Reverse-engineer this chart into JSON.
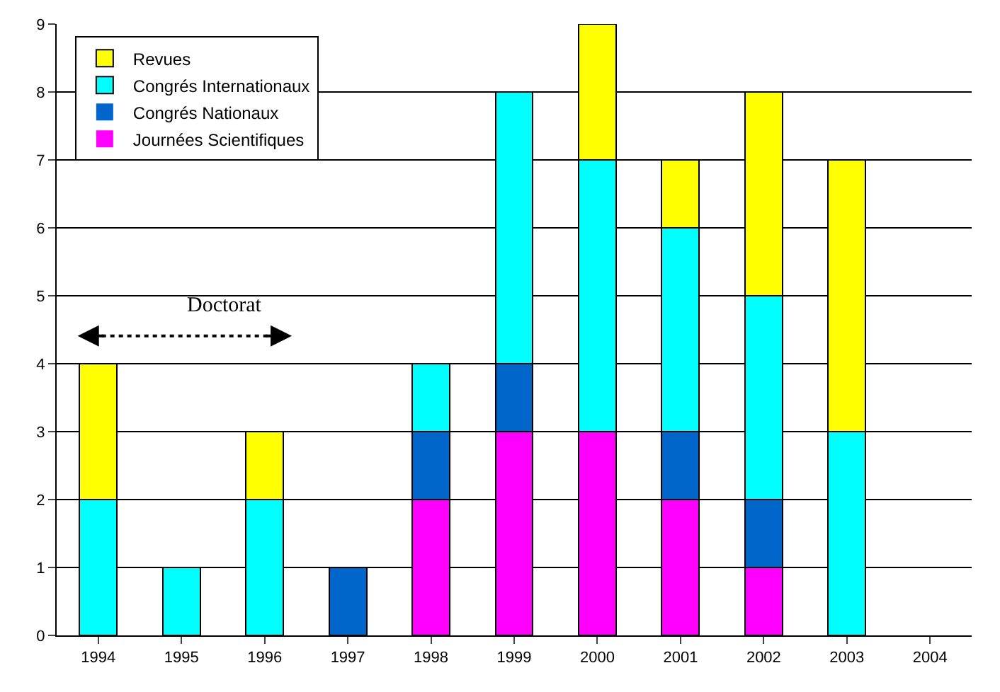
{
  "chart_data": {
    "type": "bar",
    "stacked": true,
    "categories": [
      "1994",
      "1995",
      "1996",
      "1997",
      "1998",
      "1999",
      "2000",
      "2001",
      "2002",
      "2003",
      "2004"
    ],
    "series": [
      {
        "name": "Journées Scientifiques",
        "color": "#ff00ff",
        "values": [
          0,
          0,
          0,
          0,
          2,
          3,
          3,
          2,
          1,
          0,
          0
        ]
      },
      {
        "name": "Congrés Nationaux",
        "color": "#0066cc",
        "values": [
          0,
          0,
          0,
          1,
          1,
          1,
          0,
          1,
          1,
          0,
          0
        ]
      },
      {
        "name": "Congrés Internationaux",
        "color": "#00ffff",
        "values": [
          2,
          1,
          2,
          0,
          1,
          4,
          4,
          3,
          3,
          3,
          0
        ]
      },
      {
        "name": "Revues",
        "color": "#ffff00",
        "values": [
          2,
          0,
          1,
          0,
          0,
          0,
          2,
          1,
          3,
          4,
          0
        ]
      }
    ],
    "ylim": [
      0,
      9
    ],
    "yticks": [
      0,
      1,
      2,
      3,
      4,
      5,
      6,
      7,
      8,
      9
    ],
    "grid": "y",
    "legend": "top left",
    "annotations": [
      "Doctorat"
    ]
  }
}
